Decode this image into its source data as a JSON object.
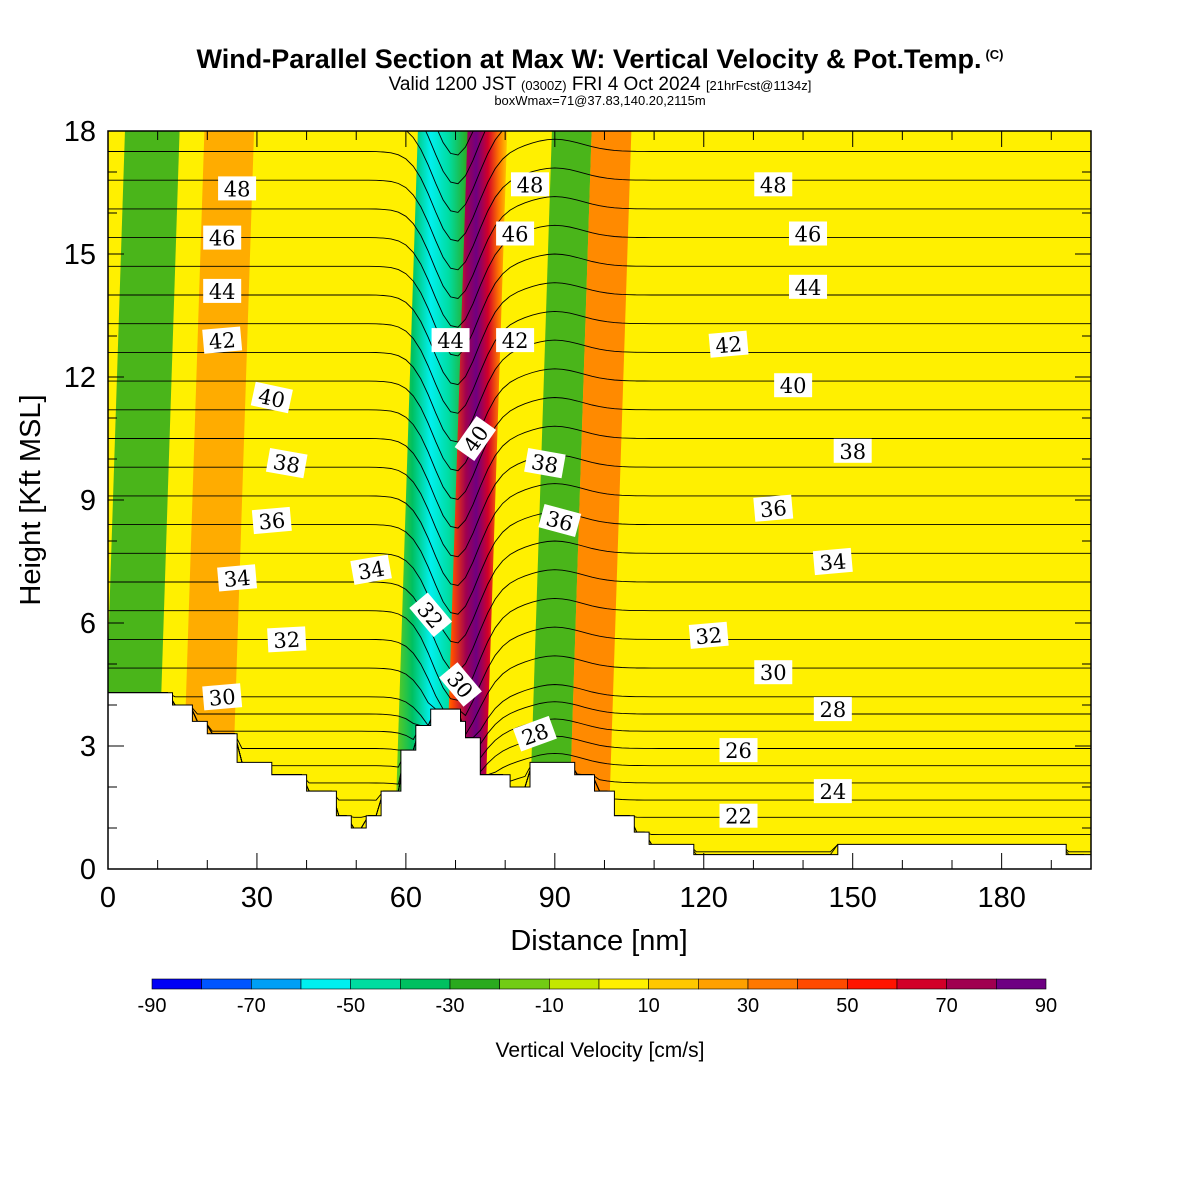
{
  "chart_data": {
    "type": "heatmap",
    "title": "Wind-Parallel Section at Max W: Vertical Velocity & Pot.Temp.",
    "title_mark": "(C)",
    "subtitle_main_a": "Valid 1200 JST",
    "subtitle_zulu": "(0300Z)",
    "subtitle_main_b": "FRI 4 Oct 2024",
    "subtitle_fcst": "[21hrFcst@1134z]",
    "subtitle2": "boxWmax=71@37.83,140.20,2115m",
    "xlabel": "Distance [nm]",
    "ylabel": "Height [Kft MSL]",
    "xlim": [
      0,
      198
    ],
    "ylim": [
      0,
      18
    ],
    "x_ticks": [
      "0",
      "30",
      "60",
      "90",
      "120",
      "150",
      "180"
    ],
    "y_ticks": [
      "0",
      "3",
      "6",
      "9",
      "12",
      "15",
      "18"
    ],
    "colorbar": {
      "label": "Vertical Velocity [cm/s]",
      "ticks": [
        "-90",
        "-70",
        "-50",
        "-30",
        "-10",
        "10",
        "30",
        "50",
        "70",
        "90"
      ],
      "bin_edges": [
        -90,
        -80,
        -70,
        -60,
        -50,
        -40,
        -30,
        -20,
        -10,
        0,
        10,
        20,
        30,
        40,
        50,
        60,
        70,
        80,
        90
      ],
      "colors": [
        "#0000f5",
        "#0055ff",
        "#009ff5",
        "#00f0f0",
        "#00dca0",
        "#00c060",
        "#2aaa1e",
        "#72cc14",
        "#c4e800",
        "#fff000",
        "#ffc800",
        "#ffa000",
        "#ff7800",
        "#ff4a00",
        "#ff1400",
        "#d20028",
        "#a00050",
        "#6e0082"
      ]
    },
    "w_features": [
      {
        "name": "updraft core",
        "x_min": 69,
        "x_max": 78,
        "value_cm_s": 90
      },
      {
        "name": "downdraft band",
        "x_min": 60,
        "x_max": 70,
        "value_cm_s": -50
      },
      {
        "name": "secondary downdraft",
        "x_min": 87,
        "x_max": 95,
        "value_cm_s": -30
      },
      {
        "name": "western downdraft",
        "x_min": 1,
        "x_max": 12,
        "value_cm_s": -30
      },
      {
        "name": "updraft band",
        "x_min": 17,
        "x_max": 27,
        "value_cm_s": 25
      },
      {
        "name": "updraft band",
        "x_min": 95,
        "x_max": 103,
        "value_cm_s": 30
      }
    ],
    "terrain": [
      [
        0,
        4.3
      ],
      [
        13,
        4.3
      ],
      [
        13,
        4.0
      ],
      [
        17,
        4.0
      ],
      [
        17,
        3.6
      ],
      [
        20,
        3.6
      ],
      [
        20,
        3.3
      ],
      [
        26,
        3.3
      ],
      [
        26,
        2.6
      ],
      [
        33,
        2.6
      ],
      [
        33,
        2.3
      ],
      [
        40,
        2.3
      ],
      [
        40,
        1.9
      ],
      [
        46,
        1.9
      ],
      [
        46,
        1.3
      ],
      [
        49,
        1.3
      ],
      [
        49,
        1.0
      ],
      [
        52,
        1.0
      ],
      [
        52,
        1.3
      ],
      [
        55,
        1.3
      ],
      [
        55,
        1.9
      ],
      [
        59,
        1.9
      ],
      [
        59,
        2.9
      ],
      [
        62,
        2.9
      ],
      [
        62,
        3.5
      ],
      [
        65,
        3.5
      ],
      [
        65,
        3.9
      ],
      [
        71,
        3.9
      ],
      [
        71,
        3.6
      ],
      [
        72,
        3.6
      ],
      [
        72,
        3.2
      ],
      [
        75,
        3.2
      ],
      [
        75,
        2.3
      ],
      [
        81,
        2.3
      ],
      [
        81,
        2.0
      ],
      [
        85,
        2.0
      ],
      [
        85,
        2.6
      ],
      [
        94,
        2.6
      ],
      [
        94,
        2.3
      ],
      [
        98,
        2.3
      ],
      [
        98,
        1.9
      ],
      [
        102,
        1.9
      ],
      [
        102,
        1.3
      ],
      [
        106,
        1.3
      ],
      [
        106,
        0.9
      ],
      [
        109,
        0.9
      ],
      [
        109,
        0.6
      ],
      [
        118,
        0.6
      ],
      [
        118,
        0.35
      ],
      [
        147,
        0.35
      ],
      [
        147,
        0.6
      ],
      [
        193,
        0.6
      ],
      [
        193,
        0.35
      ],
      [
        198,
        0.35
      ],
      [
        198,
        0
      ]
    ],
    "theta_contours": {
      "interval_K": 1,
      "range_K": [
        20,
        52
      ]
    },
    "contour_labels": [
      {
        "text": "48",
        "x": 26,
        "y": 16.6,
        "rot": 0
      },
      {
        "text": "46",
        "x": 23,
        "y": 15.4,
        "rot": 0
      },
      {
        "text": "44",
        "x": 23,
        "y": 14.1,
        "rot": 0
      },
      {
        "text": "42",
        "x": 23,
        "y": 12.9,
        "rot": -5
      },
      {
        "text": "40",
        "x": 33,
        "y": 11.5,
        "rot": 12
      },
      {
        "text": "38",
        "x": 36,
        "y": 9.9,
        "rot": 10
      },
      {
        "text": "36",
        "x": 33,
        "y": 8.5,
        "rot": -5
      },
      {
        "text": "34",
        "x": 26,
        "y": 7.1,
        "rot": -5
      },
      {
        "text": "32",
        "x": 36,
        "y": 5.6,
        "rot": -3
      },
      {
        "text": "30",
        "x": 23,
        "y": 4.2,
        "rot": -5
      },
      {
        "text": "34",
        "x": 53,
        "y": 7.3,
        "rot": -10
      },
      {
        "text": "32",
        "x": 65,
        "y": 6.2,
        "rot": 50
      },
      {
        "text": "30",
        "x": 71,
        "y": 4.5,
        "rot": 50
      },
      {
        "text": "44",
        "x": 69,
        "y": 12.9,
        "rot": 0
      },
      {
        "text": "40",
        "x": 74,
        "y": 10.5,
        "rot": -55
      },
      {
        "text": "48",
        "x": 85,
        "y": 16.7,
        "rot": 0
      },
      {
        "text": "46",
        "x": 82,
        "y": 15.5,
        "rot": 0
      },
      {
        "text": "42",
        "x": 82,
        "y": 12.9,
        "rot": 0
      },
      {
        "text": "38",
        "x": 88,
        "y": 9.9,
        "rot": 10
      },
      {
        "text": "36",
        "x": 91,
        "y": 8.5,
        "rot": 15
      },
      {
        "text": "28",
        "x": 86,
        "y": 3.3,
        "rot": -20
      },
      {
        "text": "48",
        "x": 134,
        "y": 16.7,
        "rot": 0
      },
      {
        "text": "46",
        "x": 141,
        "y": 15.5,
        "rot": 0
      },
      {
        "text": "44",
        "x": 141,
        "y": 14.2,
        "rot": 0
      },
      {
        "text": "42",
        "x": 125,
        "y": 12.8,
        "rot": -5
      },
      {
        "text": "40",
        "x": 138,
        "y": 11.8,
        "rot": 0
      },
      {
        "text": "38",
        "x": 150,
        "y": 10.2,
        "rot": 0
      },
      {
        "text": "36",
        "x": 134,
        "y": 8.8,
        "rot": -5
      },
      {
        "text": "34",
        "x": 146,
        "y": 7.5,
        "rot": -5
      },
      {
        "text": "32",
        "x": 121,
        "y": 5.7,
        "rot": -5
      },
      {
        "text": "30",
        "x": 134,
        "y": 4.8,
        "rot": 0
      },
      {
        "text": "28",
        "x": 146,
        "y": 3.9,
        "rot": 0
      },
      {
        "text": "26",
        "x": 127,
        "y": 2.9,
        "rot": 0
      },
      {
        "text": "24",
        "x": 146,
        "y": 1.9,
        "rot": 0
      },
      {
        "text": "22",
        "x": 127,
        "y": 1.3,
        "rot": 0
      }
    ]
  }
}
